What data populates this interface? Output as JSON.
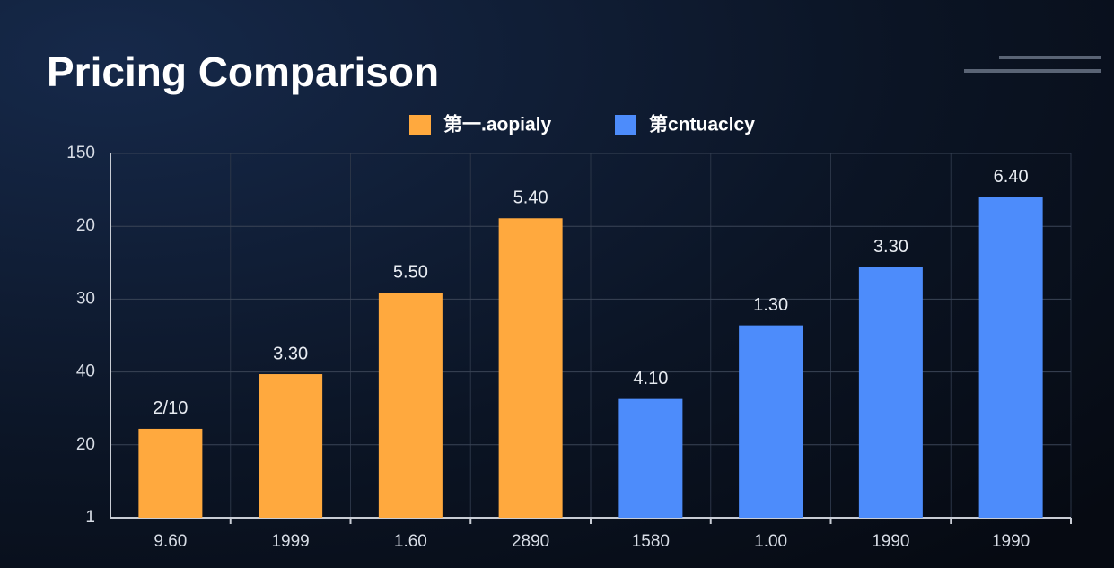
{
  "chart_data": {
    "type": "bar",
    "title": "Pricing Comparison",
    "categories": [
      "9.60",
      "1999",
      "1.60",
      "2890",
      "1580",
      "1.00",
      "1990",
      "1990"
    ],
    "series": [
      {
        "name": "第一.aopialy",
        "color": "#ffa93e",
        "values": [
          1.22,
          1.97,
          3.09,
          4.11,
          null,
          null,
          null,
          null
        ]
      },
      {
        "name": "第cntuaclcy",
        "color": "#4d8cfb",
        "values": [
          null,
          null,
          null,
          null,
          1.63,
          2.64,
          3.44,
          4.4
        ]
      }
    ],
    "bar_labels": [
      "2/10",
      "3.30",
      "5.50",
      "5.40",
      "4.10",
      "1.30",
      "3.30",
      "6.40"
    ],
    "ylim": [
      0,
      5
    ],
    "yticks": [
      {
        "value": 0,
        "label": "1"
      },
      {
        "value": 1,
        "label": "20"
      },
      {
        "value": 2,
        "label": "40"
      },
      {
        "value": 3,
        "label": "30"
      },
      {
        "value": 4,
        "label": "20"
      },
      {
        "value": 5,
        "label": "150"
      }
    ],
    "grid": true
  }
}
